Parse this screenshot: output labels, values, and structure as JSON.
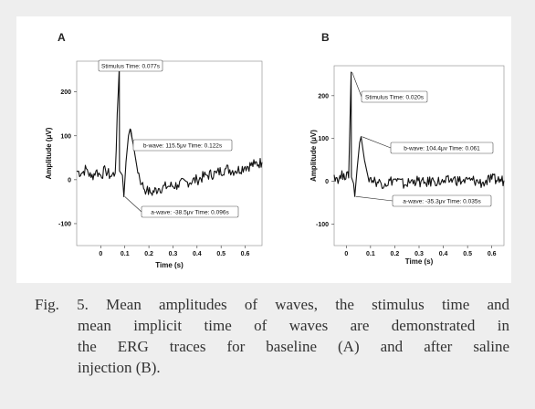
{
  "panels": [
    {
      "label": "A",
      "ylabel": "Amplitude (μV)",
      "xlabel": "Time (s)",
      "yticks": [
        "200",
        "100",
        "0",
        "-100"
      ],
      "xticks": [
        "0",
        "0.1",
        "0.2",
        "0.3",
        "0.4",
        "0.5",
        "0.6"
      ],
      "callouts": {
        "stimulus": "Stimulus Time: 0.077s",
        "bwave": "b-wave: 115.5μv Time: 0.122s",
        "awave": "a-wave: -38.5μv Time: 0.096s"
      }
    },
    {
      "label": "B",
      "ylabel": "Amplitude (μV)",
      "xlabel": "Time (s)",
      "yticks": [
        "200",
        "100",
        "0",
        "-100"
      ],
      "xticks": [
        "0",
        "0.1",
        "0.2",
        "0.3",
        "0.4",
        "0.5",
        "0.6"
      ],
      "callouts": {
        "stimulus": "Stimulus Time: 0.020s",
        "bwave": "b-wave: 104.4μv Time: 0.061",
        "awave": "a-wave: -35.3μv Time: 0.035s"
      }
    }
  ],
  "chart_data": [
    {
      "type": "line",
      "title": "A",
      "xlabel": "Time (s)",
      "ylabel": "Amplitude (μV)",
      "xlim": [
        -0.1,
        0.67
      ],
      "ylim": [
        -150,
        270
      ],
      "points": [
        [
          -0.1,
          20
        ],
        [
          -0.08,
          15
        ],
        [
          -0.06,
          25
        ],
        [
          -0.04,
          5
        ],
        [
          -0.02,
          20
        ],
        [
          0.0,
          10
        ],
        [
          0.02,
          22
        ],
        [
          0.04,
          8
        ],
        [
          0.06,
          15
        ],
        [
          0.077,
          260
        ],
        [
          0.078,
          20
        ],
        [
          0.09,
          10
        ],
        [
          0.096,
          -38.5
        ],
        [
          0.105,
          40
        ],
        [
          0.115,
          100
        ],
        [
          0.122,
          115.5
        ],
        [
          0.135,
          80
        ],
        [
          0.15,
          30
        ],
        [
          0.17,
          -10
        ],
        [
          0.19,
          -25
        ],
        [
          0.21,
          -30
        ],
        [
          0.24,
          -20
        ],
        [
          0.28,
          -15
        ],
        [
          0.32,
          -12
        ],
        [
          0.36,
          -5
        ],
        [
          0.4,
          0
        ],
        [
          0.44,
          10
        ],
        [
          0.48,
          15
        ],
        [
          0.52,
          25
        ],
        [
          0.56,
          20
        ],
        [
          0.6,
          30
        ],
        [
          0.64,
          35
        ],
        [
          0.67,
          40
        ]
      ],
      "annotations": [
        {
          "text": "Stimulus Time: 0.077s",
          "x": 0.077,
          "y": 260
        },
        {
          "text": "b-wave: 115.5μv Time: 0.122s",
          "x": 0.122,
          "y": 115.5
        },
        {
          "text": "a-wave: -38.5μv Time: 0.096s",
          "x": 0.096,
          "y": -38.5
        }
      ]
    },
    {
      "type": "line",
      "title": "B",
      "xlabel": "Time (s)",
      "ylabel": "Amplitude (μV)",
      "xlim": [
        -0.05,
        0.65
      ],
      "ylim": [
        -150,
        270
      ],
      "points": [
        [
          -0.05,
          15
        ],
        [
          -0.03,
          5
        ],
        [
          -0.01,
          18
        ],
        [
          0.01,
          8
        ],
        [
          0.02,
          255
        ],
        [
          0.021,
          10
        ],
        [
          0.03,
          -5
        ],
        [
          0.035,
          -35.3
        ],
        [
          0.045,
          30
        ],
        [
          0.055,
          90
        ],
        [
          0.061,
          104.4
        ],
        [
          0.075,
          50
        ],
        [
          0.09,
          10
        ],
        [
          0.12,
          0
        ],
        [
          0.16,
          -5
        ],
        [
          0.2,
          5
        ],
        [
          0.24,
          -8
        ],
        [
          0.28,
          3
        ],
        [
          0.32,
          -5
        ],
        [
          0.36,
          2
        ],
        [
          0.4,
          -3
        ],
        [
          0.44,
          5
        ],
        [
          0.48,
          0
        ],
        [
          0.52,
          3
        ],
        [
          0.56,
          -4
        ],
        [
          0.6,
          5
        ],
        [
          0.65,
          2
        ]
      ],
      "annotations": [
        {
          "text": "Stimulus Time: 0.020s",
          "x": 0.02,
          "y": 255
        },
        {
          "text": "b-wave: 104.4μv Time: 0.061",
          "x": 0.061,
          "y": 104.4
        },
        {
          "text": "a-wave: -35.3μv Time: 0.035s",
          "x": 0.035,
          "y": -35.3
        }
      ]
    }
  ],
  "caption": {
    "line1": "Fig. 5.  Mean amplitudes of waves, the stimulus time and",
    "line2": "mean implicit time of waves are demonstrated in",
    "line3": "the ERG traces for baseline (A) and after saline",
    "line4": "injection (B)."
  }
}
